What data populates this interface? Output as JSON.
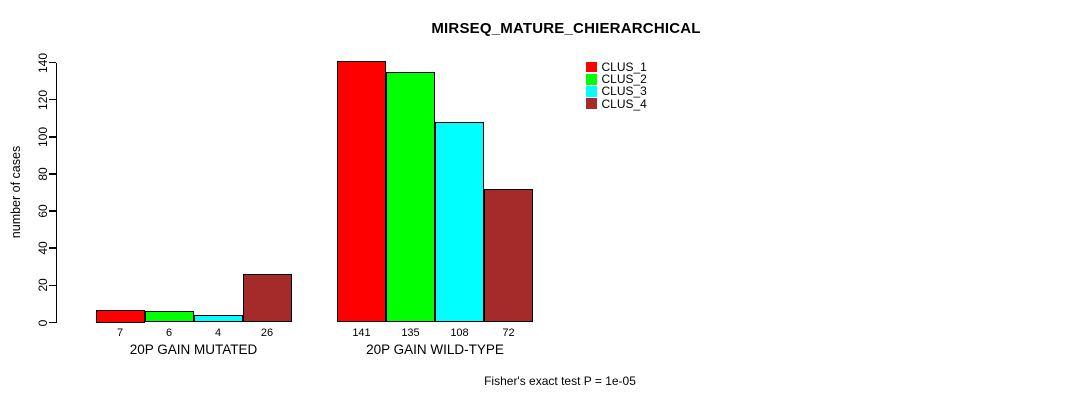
{
  "chart_data": {
    "type": "bar",
    "title": "MIRSEQ_MATURE_CHIERARCHICAL",
    "ylabel": "number of cases",
    "xlabel": "",
    "ylim": [
      0,
      140
    ],
    "yticks": [
      0,
      20,
      40,
      60,
      80,
      100,
      120,
      140
    ],
    "categories": [
      "20P GAIN MUTATED",
      "20P GAIN WILD-TYPE"
    ],
    "series": [
      {
        "name": "CLUS_1",
        "color": "#ff0000",
        "values": [
          7,
          141
        ]
      },
      {
        "name": "CLUS_2",
        "color": "#00ff00",
        "values": [
          6,
          135
        ]
      },
      {
        "name": "CLUS_3",
        "color": "#00ffff",
        "values": [
          4,
          108
        ]
      },
      {
        "name": "CLUS_4",
        "color": "#a52a2a",
        "values": [
          26,
          72
        ]
      }
    ],
    "show_value_labels": true,
    "grid": false,
    "legend_position": "right-of-plot-top",
    "axis_color": "#000000",
    "bar_border_color": "#000000",
    "background_color": "#ffffff",
    "annotation": "Fisher's exact test P = 1e-05"
  }
}
